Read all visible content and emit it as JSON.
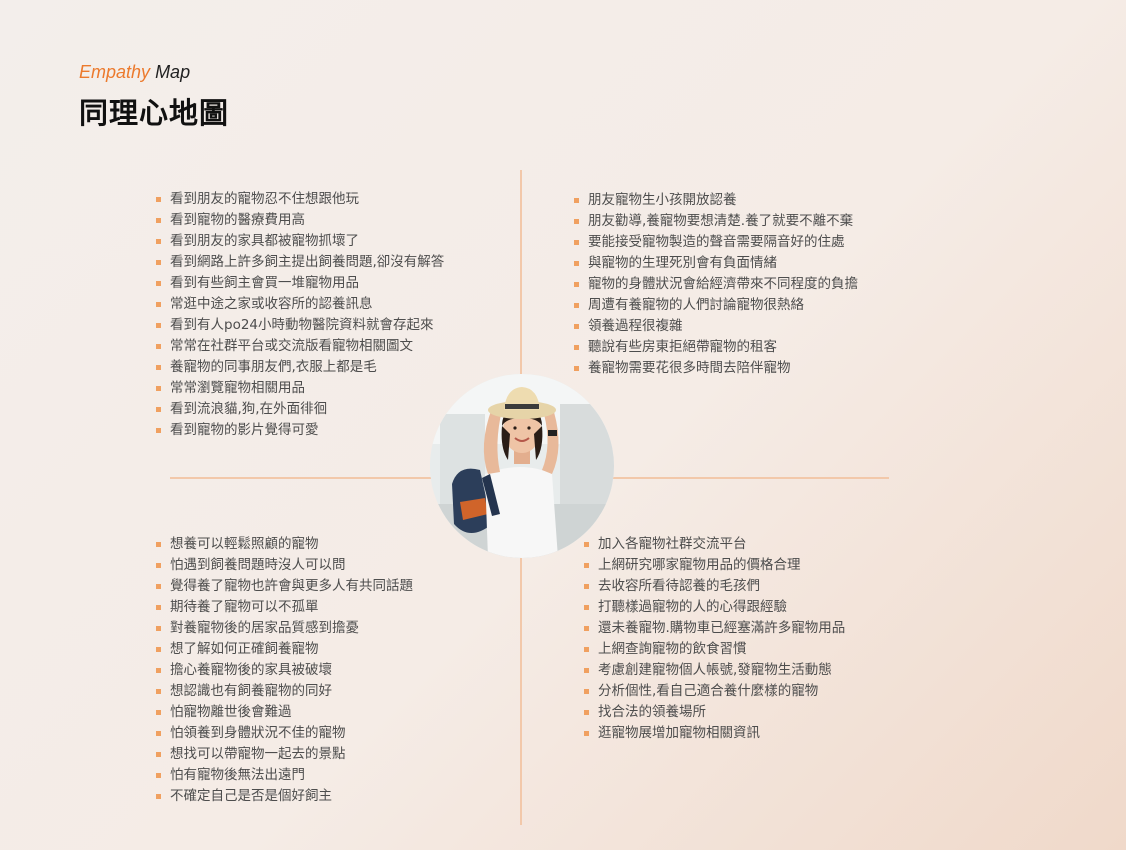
{
  "header": {
    "subtitle_accent": "Empathy",
    "subtitle_rest": "Map",
    "title": "同理心地圖"
  },
  "quadrants": {
    "top_left": [
      "看到朋友的寵物忍不住想跟他玩",
      "看到寵物的醫療費用高",
      "看到朋友的家具都被寵物抓壞了",
      "看到網路上許多飼主提出飼養問題,卻沒有解答",
      "看到有些飼主會買一堆寵物用品",
      "常逛中途之家或收容所的認養訊息",
      "看到有人po24小時動物醫院資料就會存起來",
      "常常在社群平台或交流版看寵物相關圖文",
      "養寵物的同事朋友們,衣服上都是毛",
      "常常瀏覽寵物相關用品",
      "看到流浪貓,狗,在外面徘徊",
      "看到寵物的影片覺得可愛"
    ],
    "top_right": [
      "朋友寵物生小孩開放認養",
      "朋友勸導,養寵物要想清楚.養了就要不離不棄",
      "要能接受寵物製造的聲音需要隔音好的住處",
      "與寵物的生理死別會有負面情緒",
      "寵物的身體狀況會給經濟帶來不同程度的負擔",
      "周遭有養寵物的人們討論寵物很熱絡",
      "領養過程很複雜",
      "聽說有些房東拒絕帶寵物的租客",
      "養寵物需要花很多時間去陪伴寵物"
    ],
    "bottom_left": [
      "想養可以輕鬆照顧的寵物",
      "怕遇到飼養問題時沒人可以問",
      "覺得養了寵物也許會與更多人有共同話題",
      "期待養了寵物可以不孤單",
      "對養寵物後的居家品質感到擔憂",
      "想了解如何正確飼養寵物",
      "擔心養寵物後的家具被破壞",
      "想認識也有飼養寵物的同好",
      "怕寵物離世後會難過",
      "怕領養到身體狀況不佳的寵物",
      "想找可以帶寵物一起去的景點",
      "怕有寵物後無法出遠門",
      "不確定自己是否是個好飼主"
    ],
    "bottom_right": [
      "加入各寵物社群交流平台",
      "上網研究哪家寵物用品的價格合理",
      "去收容所看待認養的毛孩們",
      "打聽樣過寵物的人的心得跟經驗",
      "還未養寵物.購物車已經塞滿許多寵物用品",
      "上網查詢寵物的飲食習慣",
      "考慮創建寵物個人帳號,發寵物生活動態",
      "分析個性,看自己適合養什麼樣的寵物",
      "找合法的領養場所",
      "逛寵物展增加寵物相關資訊"
    ]
  },
  "colors": {
    "accent": "#ec7a2d",
    "divider": "#f2c8aa",
    "bullet": "#f0a060",
    "text": "#4d4d4d"
  },
  "photo": {
    "icon": "persona-portrait"
  }
}
